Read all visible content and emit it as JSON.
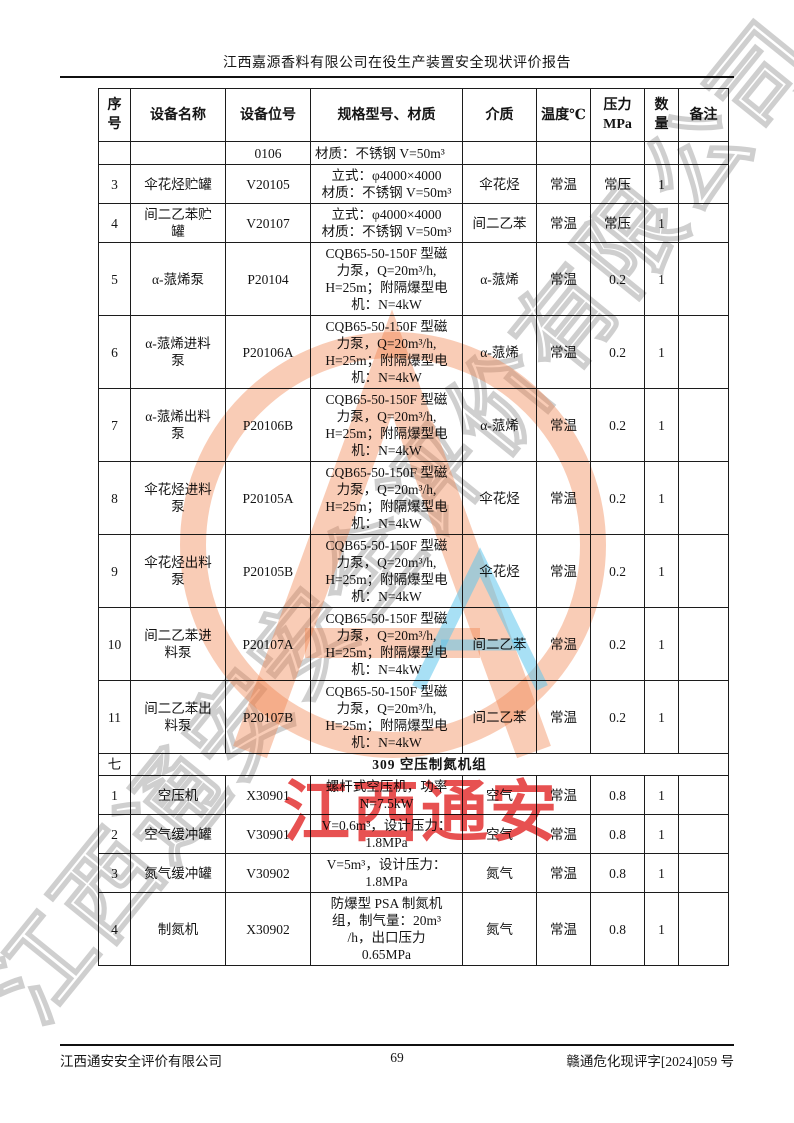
{
  "page": {
    "title": "江西嘉源香料有限公司在役生产装置安全现状评价报告",
    "footer": {
      "company": "江西通安安全评价有限公司",
      "page_number": "69",
      "doc_number": "赣通危化现评字[2024]059 号"
    }
  },
  "watermark": {
    "diagonal_text": "江西通安安全评价有限公司",
    "stamp_text": "江西通安",
    "logo_letter": "A",
    "colors": {
      "orange": "rgba(240,128,72,0.40)",
      "blue": "rgba(96,198,236,0.55)",
      "red": "rgba(224,32,32,0.78)",
      "outline_gray": "rgba(160,160,160,0.5)"
    }
  },
  "table": {
    "headers": [
      "序\n号",
      "设备名称",
      "设备位号",
      "规格型号、材质",
      "介质",
      "温度℃",
      "压力\nMPa",
      "数\n量",
      "备注"
    ],
    "rows": [
      {
        "cells": [
          "",
          "",
          "0106",
          "材质：不锈钢 V=50m³",
          "",
          "",
          "",
          "",
          ""
        ]
      },
      {
        "cells": [
          "3",
          "伞花烃贮罐",
          "V20105",
          "立式：φ4000×4000\n材质：不锈钢 V=50m³",
          "伞花烃",
          "常温",
          "常压",
          "1",
          ""
        ]
      },
      {
        "cells": [
          "4",
          "间二乙苯贮\n罐",
          "V20107",
          "立式：φ4000×4000\n材质：不锈钢 V=50m³",
          "间二乙苯",
          "常温",
          "常压",
          "1",
          ""
        ]
      },
      {
        "cells": [
          "5",
          "α-蒎烯泵",
          "P20104",
          "CQB65-50-150F 型磁\n力泵，Q=20m³/h,\nH=25m；附隔爆型电\n机：N=4kW",
          "α-蒎烯",
          "常温",
          "0.2",
          "1",
          ""
        ]
      },
      {
        "cells": [
          "6",
          "α-蒎烯进料\n泵",
          "P20106A",
          "CQB65-50-150F 型磁\n力泵，Q=20m³/h,\nH=25m；附隔爆型电\n机：N=4kW",
          "α-蒎烯",
          "常温",
          "0.2",
          "1",
          ""
        ]
      },
      {
        "cells": [
          "7",
          "α-蒎烯出料\n泵",
          "P20106B",
          "CQB65-50-150F 型磁\n力泵，Q=20m³/h,\nH=25m；附隔爆型电\n机：N=4kW",
          "α-蒎烯",
          "常温",
          "0.2",
          "1",
          ""
        ]
      },
      {
        "cells": [
          "8",
          "伞花烃进料\n泵",
          "P20105A",
          "CQB65-50-150F 型磁\n力泵，Q=20m³/h,\nH=25m；附隔爆型电\n机：N=4kW",
          "伞花烃",
          "常温",
          "0.2",
          "1",
          ""
        ]
      },
      {
        "cells": [
          "9",
          "伞花烃出料\n泵",
          "P20105B",
          "CQB65-50-150F 型磁\n力泵，Q=20m³/h,\nH=25m；附隔爆型电\n机：N=4kW",
          "伞花烃",
          "常温",
          "0.2",
          "1",
          ""
        ]
      },
      {
        "cells": [
          "10",
          "间二乙苯进\n料泵",
          "P20107A",
          "CQB65-50-150F 型磁\n力泵，Q=20m³/h,\nH=25m；附隔爆型电\n机：N=4kW",
          "间二乙苯",
          "常温",
          "0.2",
          "1",
          ""
        ]
      },
      {
        "cells": [
          "11",
          "间二乙苯出\n料泵",
          "P20107B",
          "CQB65-50-150F 型磁\n力泵，Q=20m³/h,\nH=25m；附隔爆型电\n机：N=4kW",
          "间二乙苯",
          "常温",
          "0.2",
          "1",
          ""
        ]
      },
      {
        "section": true,
        "cells": [
          "七",
          "309 空压制氮机组"
        ]
      },
      {
        "cells": [
          "1",
          "空压机",
          "X30901",
          "螺杆式空压机，功率\nN=7.5kW",
          "空气",
          "常温",
          "0.8",
          "1",
          ""
        ]
      },
      {
        "cells": [
          "2",
          "空气缓冲罐",
          "V30901",
          "V=0.6m³，设计压力：\n1.8MPa",
          "空气",
          "常温",
          "0.8",
          "1",
          ""
        ]
      },
      {
        "cells": [
          "3",
          "氮气缓冲罐",
          "V30902",
          "V=5m³，设计压力：\n1.8MPa",
          "氮气",
          "常温",
          "0.8",
          "1",
          ""
        ]
      },
      {
        "cells": [
          "4",
          "制氮机",
          "X30902",
          "防爆型 PSA 制氮机\n组，制气量：20m³\n/h，出口压力\n0.65MPa",
          "氮气",
          "常温",
          "0.8",
          "1",
          ""
        ]
      }
    ]
  }
}
